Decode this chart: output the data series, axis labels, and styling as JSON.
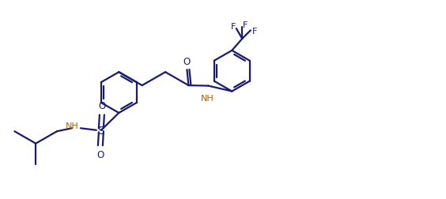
{
  "bg_color": "#ffffff",
  "line_color": "#1a1a6e",
  "nh_color": "#b85c00",
  "lw": 1.6,
  "doff": 0.06,
  "shrink": 0.1,
  "r": 0.52,
  "xlim": [
    0,
    11.28
  ],
  "ylim": [
    0,
    5.06
  ]
}
